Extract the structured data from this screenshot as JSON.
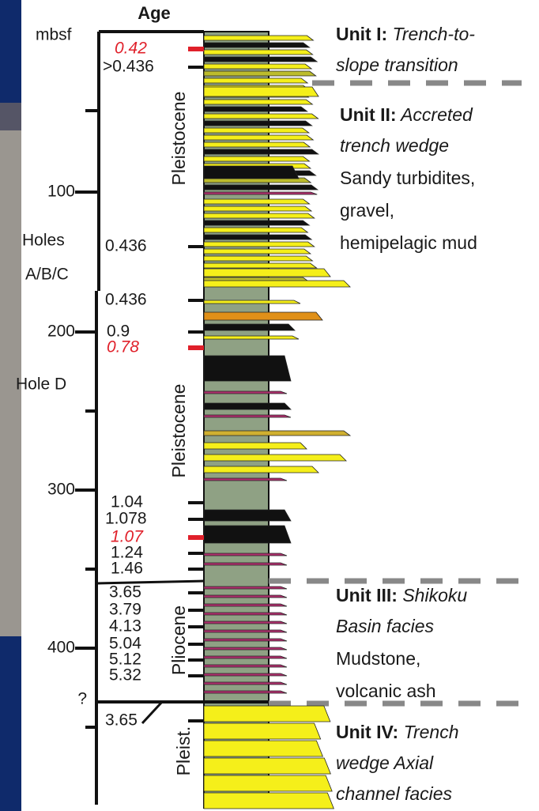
{
  "header": {
    "title": "Age",
    "depth_unit": "mbsf"
  },
  "depth_labels": [
    "100",
    "200",
    "300",
    "400",
    "?"
  ],
  "hole_labels": {
    "upper": [
      "Holes",
      "A/B/C"
    ],
    "lower": "Hole D"
  },
  "ages": [
    {
      "text": "0.42",
      "style": "red"
    },
    {
      "text": ">0.436",
      "style": "black"
    },
    {
      "text": "0.436",
      "style": "black"
    },
    {
      "text": "0.436",
      "style": "black"
    },
    {
      "text": "0.9",
      "style": "black"
    },
    {
      "text": "0.78",
      "style": "red"
    },
    {
      "text": "1.04",
      "style": "black"
    },
    {
      "text": "1.078",
      "style": "black"
    },
    {
      "text": "1.07",
      "style": "red"
    },
    {
      "text": "1.24",
      "style": "black"
    },
    {
      "text": "1.46",
      "style": "black"
    },
    {
      "text": "3.65",
      "style": "black"
    },
    {
      "text": "3.79",
      "style": "black"
    },
    {
      "text": "4.13",
      "style": "black"
    },
    {
      "text": "5.04",
      "style": "black"
    },
    {
      "text": "5.12",
      "style": "black"
    },
    {
      "text": "5.32",
      "style": "black"
    },
    {
      "text": "3.65",
      "style": "black"
    }
  ],
  "epochs": [
    "Pleistocene",
    "Pleistocene",
    "Pliocene",
    "Pleist."
  ],
  "units": [
    {
      "label": "Unit I:",
      "italic": [
        "Trench-to-",
        "slope transition"
      ],
      "plain": []
    },
    {
      "label": "Unit II:",
      "italic": [
        "Accreted",
        "trench wedge"
      ],
      "plain": [
        "Sandy turbidites,",
        "gravel,",
        "hemipelagic mud"
      ]
    },
    {
      "label": "Unit III:",
      "italic": [
        "Shikoku",
        "Basin facies"
      ],
      "plain": [
        "Mudstone,",
        "volcanic ash"
      ]
    },
    {
      "label": "Unit IV:",
      "italic": [
        "Trench",
        "wedge Axial",
        "channel facies"
      ],
      "plain": []
    }
  ]
}
